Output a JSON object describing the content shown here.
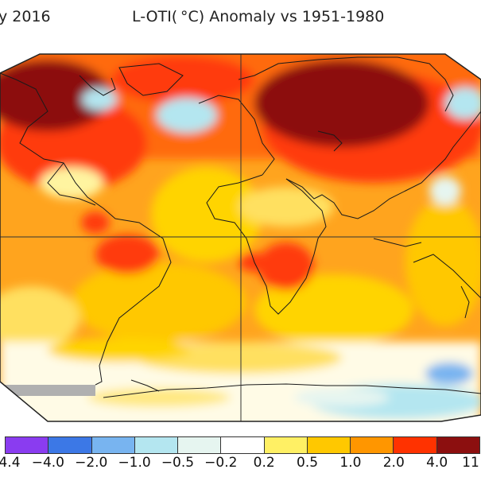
{
  "title": {
    "left": "y 2016",
    "right": "L-OTI( °C) Anomaly vs 1951-1980"
  },
  "legend": {
    "colors": [
      "#8a3cf0",
      "#3c78e6",
      "#78b4f0",
      "#b4e6f0",
      "#e6f5f0",
      "#ffffff",
      "#fff064",
      "#ffc800",
      "#ff9600",
      "#ff3200",
      "#8c0f0f"
    ],
    "ticks": [
      "4.4",
      "−4.0",
      "−2.0",
      "−1.0",
      "−0.5",
      "−0.2",
      "0.2",
      "0.5",
      "1.0",
      "2.0",
      "4.0",
      "11"
    ]
  },
  "map": {
    "ocean_color": "#ffb41e",
    "frame_color": "#222222"
  }
}
